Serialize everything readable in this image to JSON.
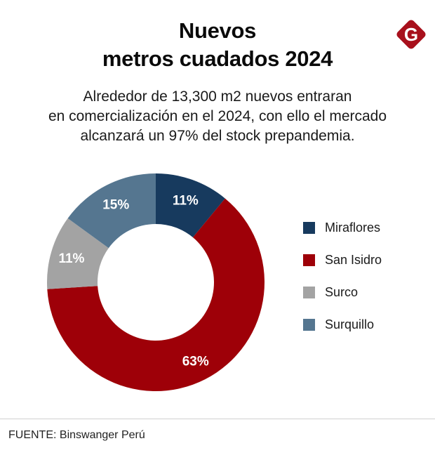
{
  "header": {
    "title_line1": "Nuevos",
    "title_line2": "metros cuadados 2024",
    "logo_letter": "G",
    "logo_color": "#a8101c"
  },
  "subtitle": {
    "line1": "Alrededor de 13,300 m2 nuevos entraran",
    "line2": "en comercialización en el 2024,  con ello el mercado",
    "line3": "alcanzará un 97% del stock prepandemia."
  },
  "chart_data": {
    "type": "pie",
    "subtype": "donut",
    "title": "Nuevos metros cuadados 2024",
    "start": "top",
    "direction": "clockwise",
    "legend_position": "right",
    "categories": [
      "Miraflores",
      "San Isidro",
      "Surco",
      "Surquillo"
    ],
    "values": [
      11,
      63,
      11,
      15
    ],
    "labels": [
      "11%",
      "63%",
      "11%",
      "15%"
    ],
    "colors": [
      "#173a5e",
      "#9e0008",
      "#a3a3a3",
      "#557690"
    ],
    "unit": "%"
  },
  "footer": {
    "source": "FUENTE: Binswanger Perú"
  }
}
